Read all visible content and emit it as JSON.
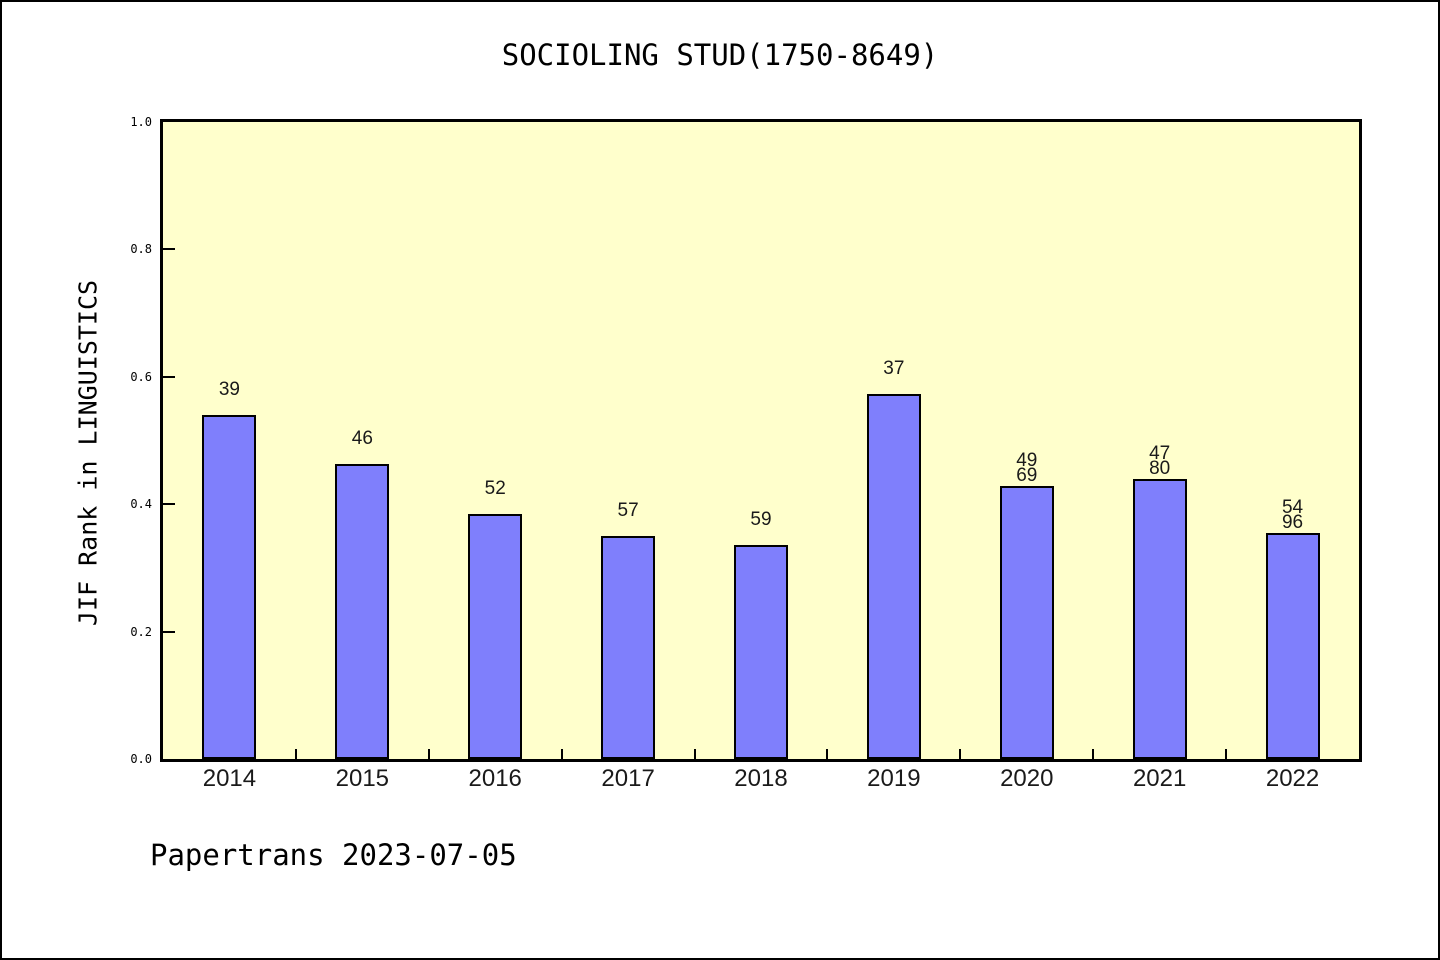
{
  "frame": {
    "background": "#ffffff",
    "border_color": "#000000"
  },
  "footer": {
    "text": "Papertrans 2023-07-05"
  },
  "chart_data": {
    "type": "bar",
    "title": "SOCIOLING STUD(1750-8649)",
    "xlabel": "",
    "ylabel": "JIF Rank in LINGUISTICS",
    "categories": [
      "2014",
      "2015",
      "2016",
      "2017",
      "2018",
      "2019",
      "2020",
      "2021",
      "2022"
    ],
    "values": [
      0.54,
      0.463,
      0.385,
      0.35,
      0.336,
      0.573,
      0.428,
      0.439,
      0.355
    ],
    "bar_labels": [
      [
        "39"
      ],
      [
        "46"
      ],
      [
        "52"
      ],
      [
        "57"
      ],
      [
        "59"
      ],
      [
        "37"
      ],
      [
        "49",
        "69"
      ],
      [
        "47",
        "80"
      ],
      [
        "54",
        "96"
      ]
    ],
    "ylim": [
      0.0,
      1.0
    ],
    "yticks": [
      0.0,
      0.2,
      0.4,
      0.6,
      0.8,
      1.0
    ],
    "ytick_labels": [
      "0.0",
      "0.2",
      "0.4",
      "0.6",
      "0.8",
      "1.0"
    ],
    "grid": false,
    "legend_position": "none",
    "colors": {
      "bar_fill": "#7f7ffc",
      "bar_edge": "#000000",
      "plot_background": "#ffffcc",
      "axis_frame": "#000000",
      "text": "#000000"
    }
  }
}
